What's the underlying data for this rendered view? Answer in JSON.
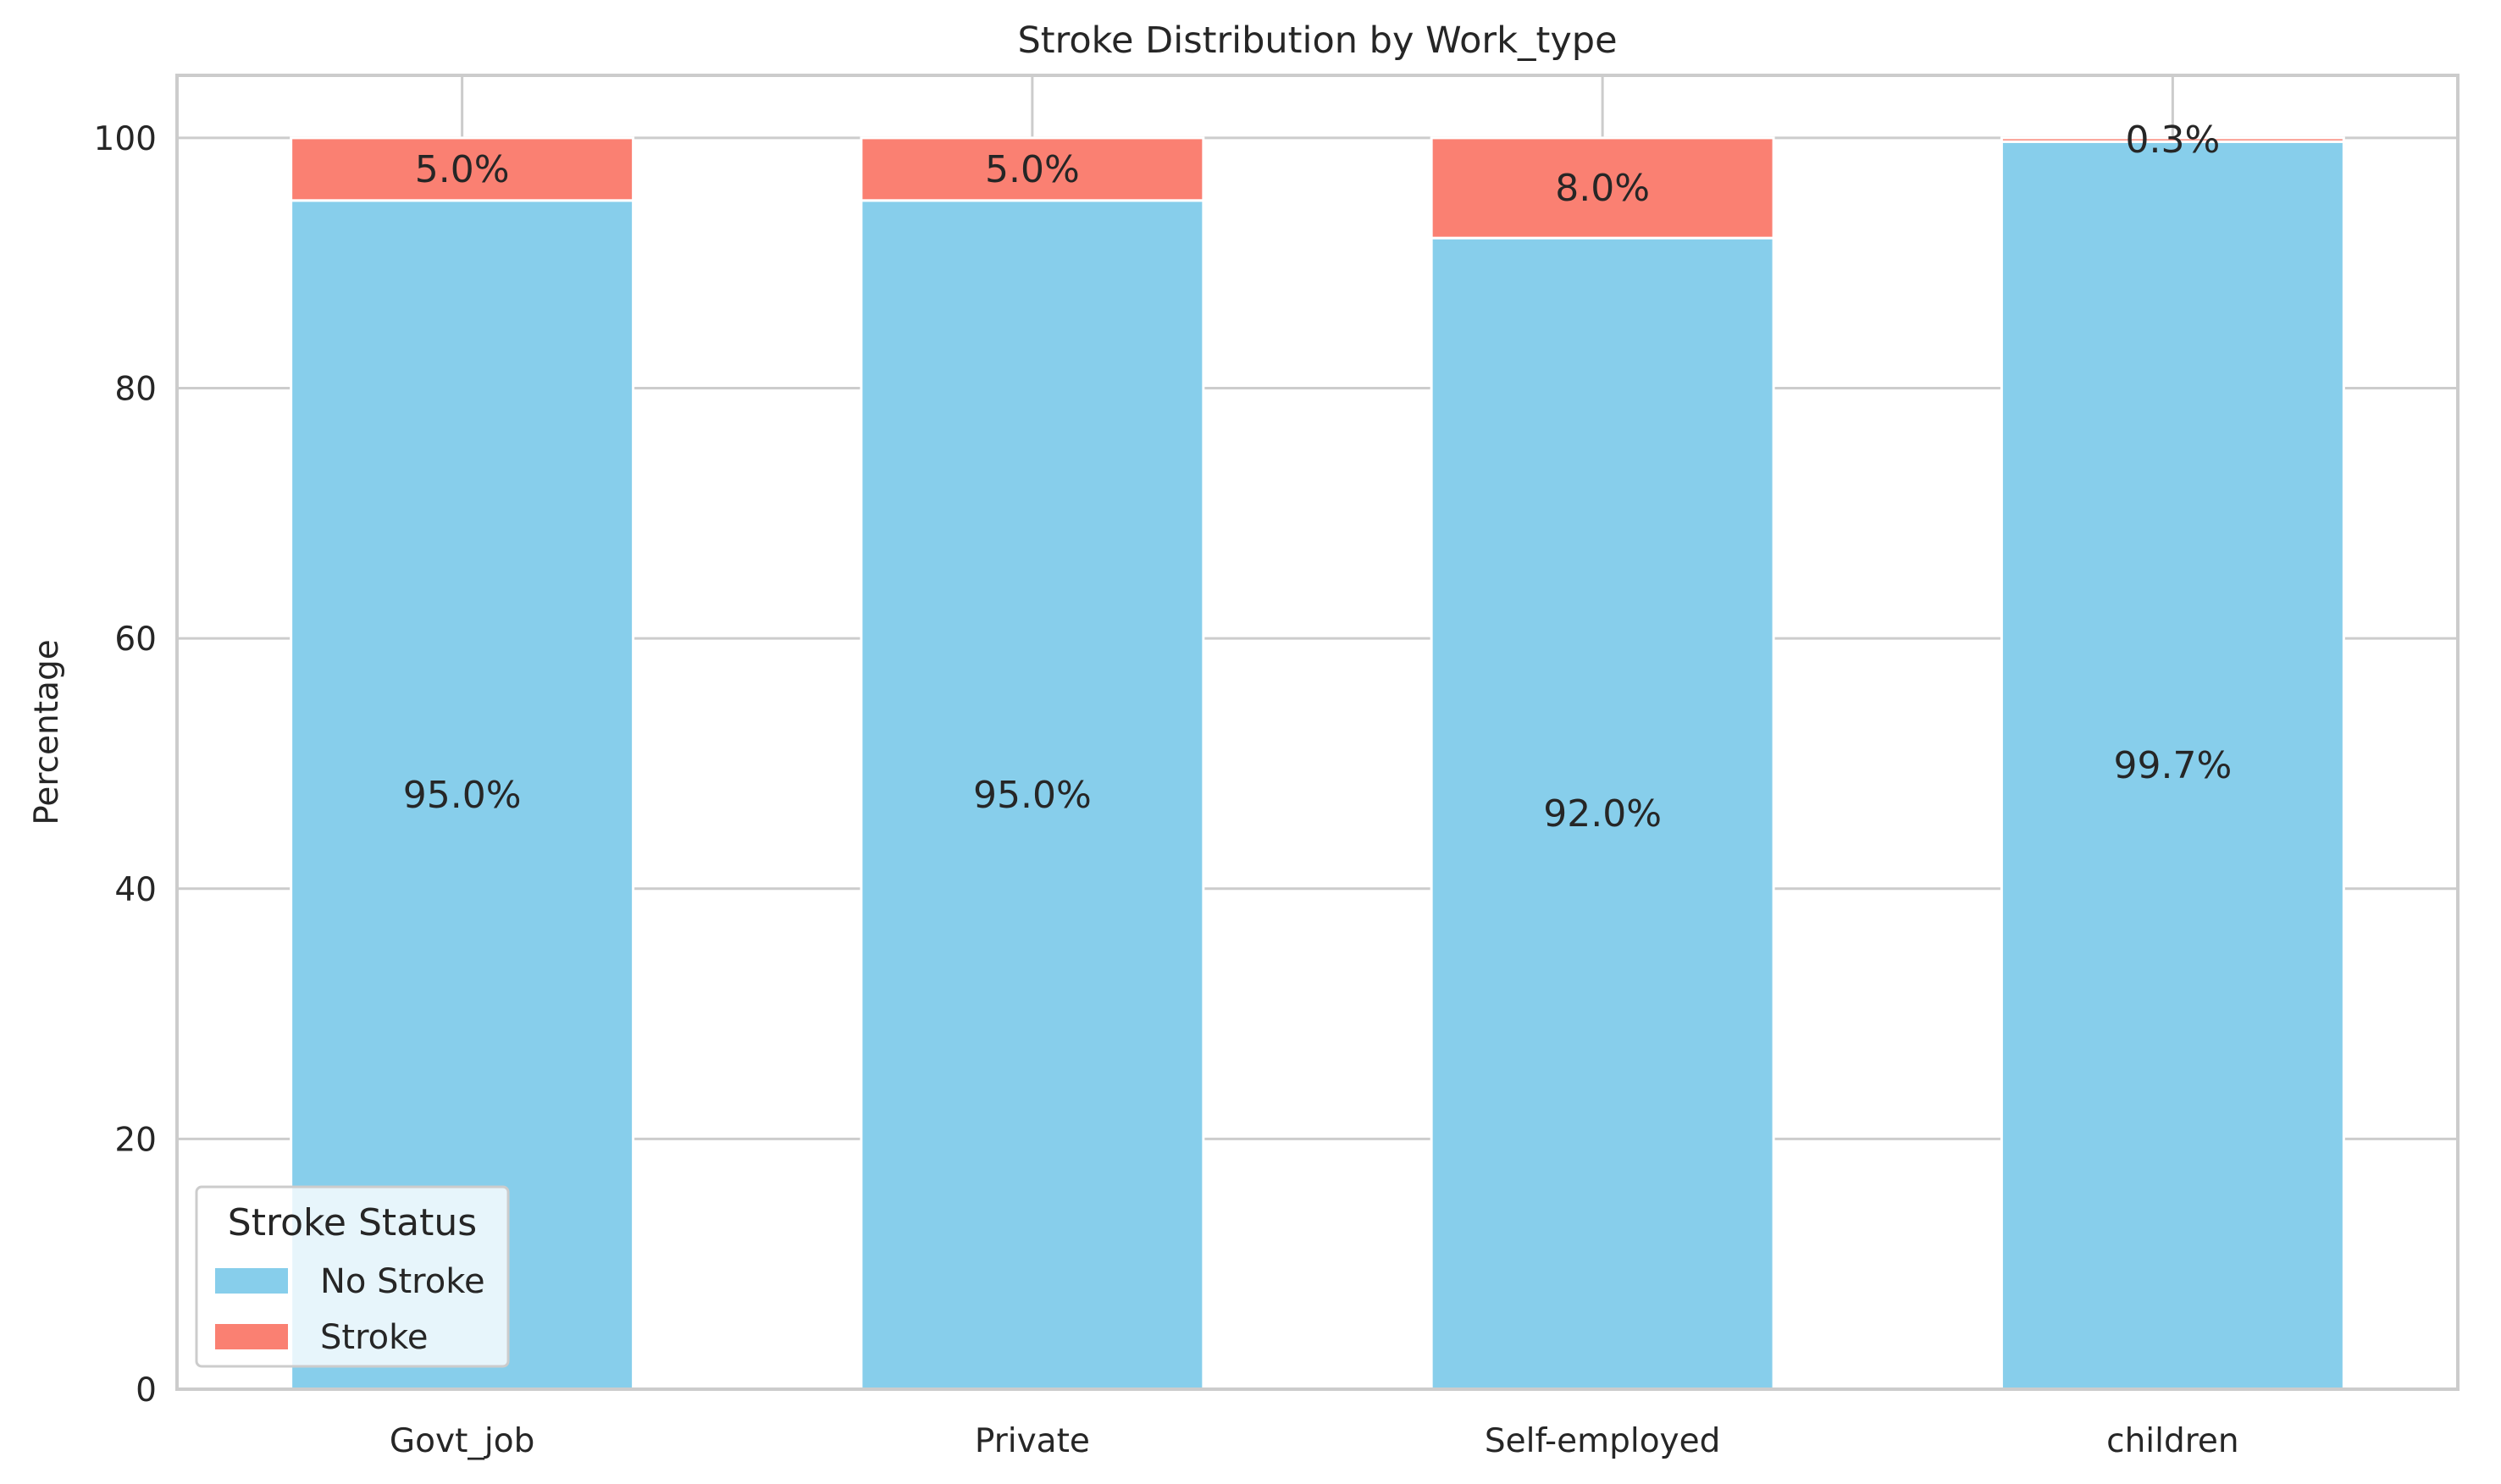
{
  "chart_data": {
    "type": "bar",
    "stacked": true,
    "title": "Stroke Distribution by Work_type",
    "xlabel": "",
    "ylabel": "Percentage",
    "ylim": [
      0,
      105
    ],
    "yticks": [
      0,
      20,
      40,
      60,
      80,
      100
    ],
    "grid": true,
    "categories": [
      "Govt_job",
      "Private",
      "Self-employed",
      "children"
    ],
    "series": [
      {
        "name": "No Stroke",
        "color": "#87CEEB",
        "values": [
          95.0,
          95.0,
          92.0,
          99.7
        ],
        "labels": [
          "95.0%",
          "95.0%",
          "92.0%",
          "99.7%"
        ]
      },
      {
        "name": "Stroke",
        "color": "#FA8072",
        "values": [
          5.0,
          5.0,
          8.0,
          0.3
        ],
        "labels": [
          "5.0%",
          "5.0%",
          "8.0%",
          "0.3%"
        ]
      }
    ],
    "legend": {
      "title": "Stroke Status",
      "placement": "lower-left"
    }
  }
}
